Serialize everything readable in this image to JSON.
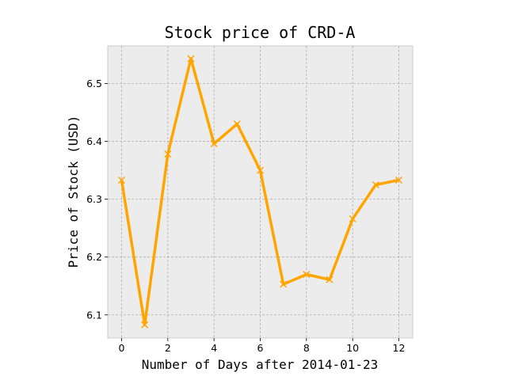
{
  "chart_data": {
    "type": "line",
    "title": "Stock price of CRD-A",
    "xlabel": "Number of Days after 2014-01-23",
    "ylabel": "Price of Stock (USD)",
    "x": [
      0,
      1,
      2,
      3,
      4,
      5,
      6,
      7,
      8,
      9,
      10,
      11,
      12
    ],
    "series": [
      {
        "values": [
          6.333,
          6.083,
          6.378,
          6.543,
          6.396,
          6.43,
          6.35,
          6.153,
          6.17,
          6.161,
          6.266,
          6.325,
          6.333
        ],
        "color": "#ffa500",
        "marker": "x"
      }
    ],
    "xlim": [
      -0.6,
      12.6
    ],
    "ylim": [
      6.06,
      6.565
    ],
    "xticks": [
      0,
      2,
      4,
      6,
      8,
      10,
      12
    ],
    "yticks": [
      6.1,
      6.2,
      6.3,
      6.4,
      6.5
    ],
    "ytick_labels": [
      "6.1",
      "6.2",
      "6.3",
      "6.4",
      "6.5"
    ],
    "grid": true,
    "background": "#ececec"
  }
}
